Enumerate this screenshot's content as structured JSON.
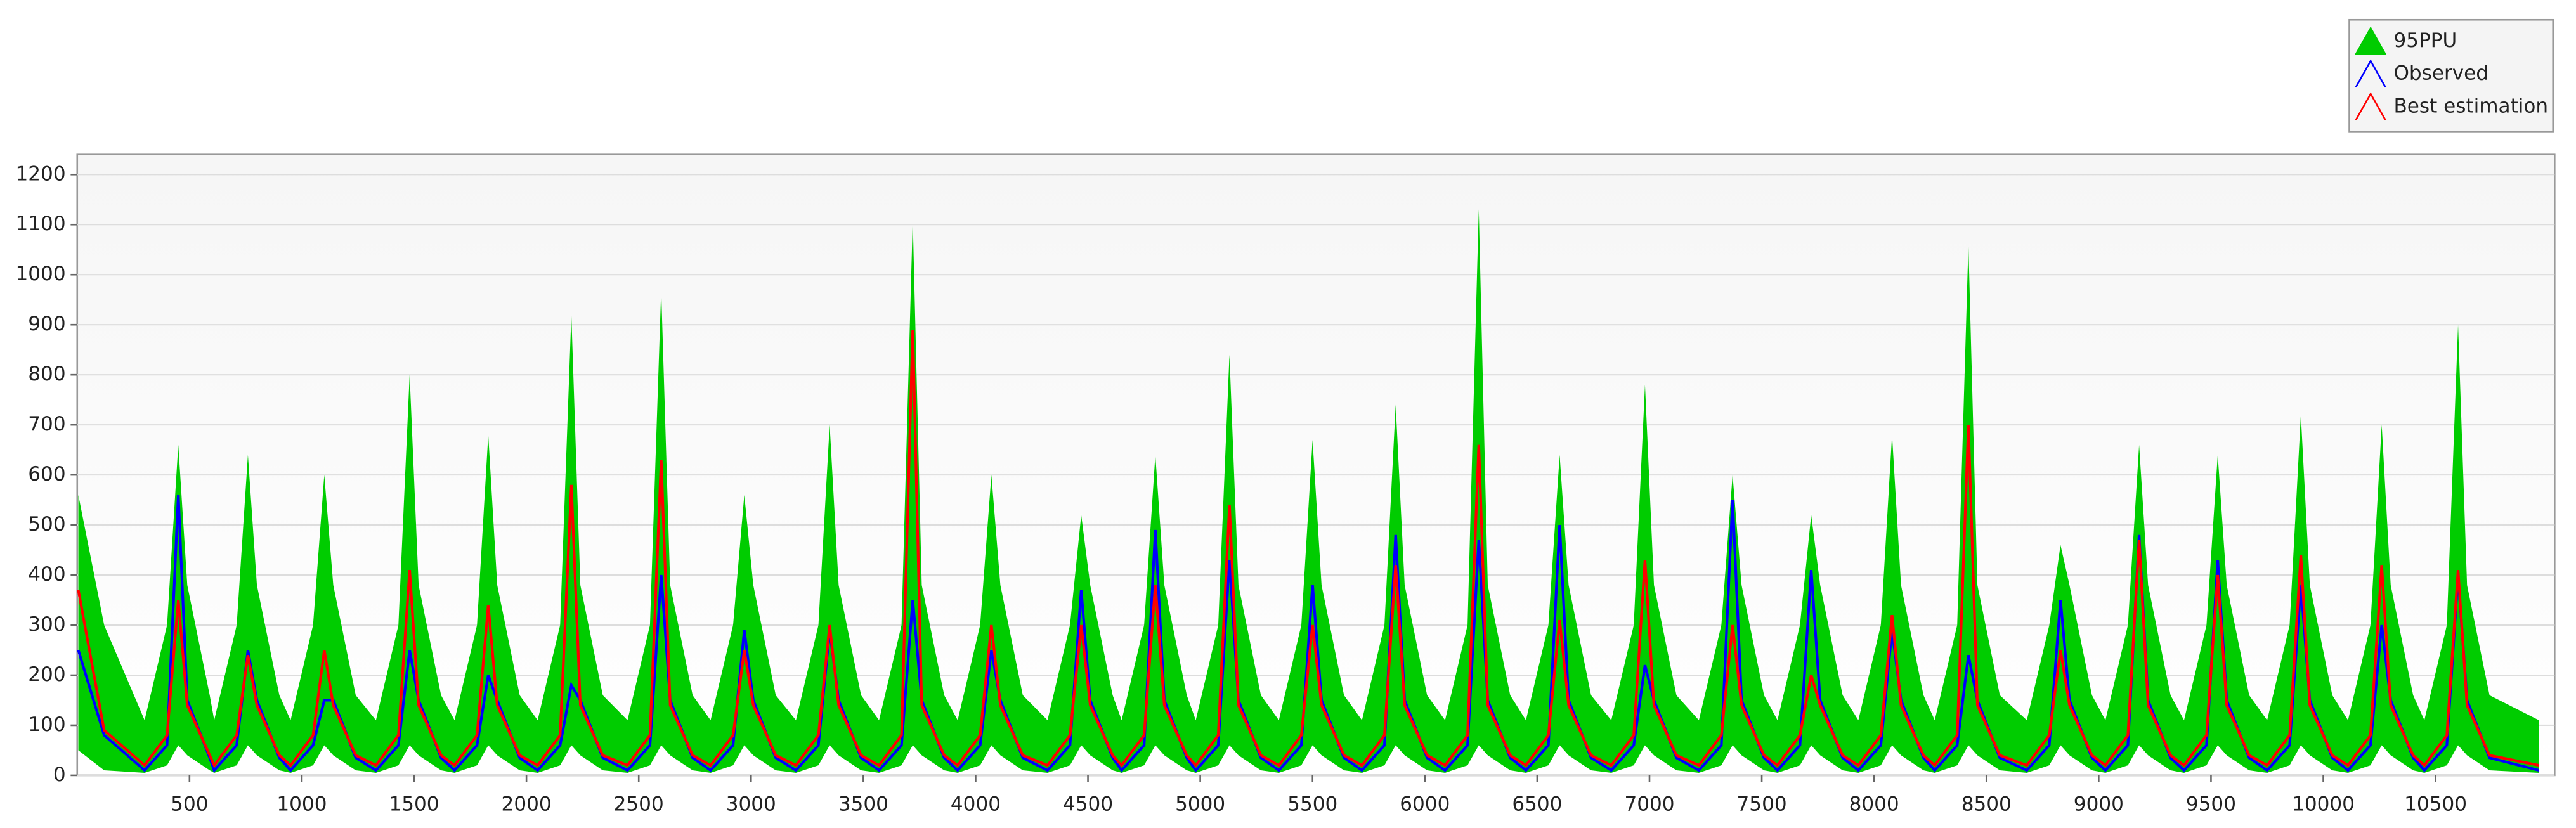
{
  "chart_data": {
    "type": "band-line",
    "x": [
      5,
      120,
      300,
      400,
      450,
      490,
      590,
      610,
      710,
      760,
      800,
      900,
      950,
      1050,
      1100,
      1140,
      1240,
      1330,
      1430,
      1480,
      1520,
      1620,
      1680,
      1780,
      1830,
      1870,
      1970,
      2050,
      2150,
      2200,
      2240,
      2340,
      2450,
      2550,
      2600,
      2640,
      2740,
      2820,
      2920,
      2970,
      3010,
      3110,
      3200,
      3300,
      3350,
      3390,
      3490,
      3570,
      3670,
      3720,
      3760,
      3860,
      3920,
      4020,
      4070,
      4110,
      4210,
      4320,
      4420,
      4470,
      4510,
      4610,
      4650,
      4750,
      4800,
      4840,
      4940,
      4980,
      5080,
      5130,
      5170,
      5270,
      5350,
      5450,
      5500,
      5540,
      5640,
      5720,
      5820,
      5870,
      5910,
      6010,
      6090,
      6190,
      6240,
      6280,
      6380,
      6450,
      6550,
      6600,
      6640,
      6740,
      6830,
      6930,
      6980,
      7020,
      7120,
      7220,
      7320,
      7370,
      7410,
      7510,
      7570,
      7670,
      7720,
      7760,
      7860,
      7930,
      8030,
      8080,
      8120,
      8220,
      8270,
      8370,
      8420,
      8460,
      8560,
      8680,
      8780,
      8830,
      8870,
      8970,
      9030,
      9130,
      9180,
      9220,
      9320,
      9380,
      9480,
      9530,
      9570,
      9670,
      9750,
      9850,
      9900,
      9940,
      10040,
      10110,
      10210,
      10260,
      10300,
      10400,
      10450,
      10550,
      10600,
      10640,
      10740,
      10960
    ],
    "series": [
      {
        "name": "95PPU",
        "color": "#00cc00",
        "upper": [
          560,
          300,
          110,
          300,
          660,
          380,
          160,
          110,
          300,
          640,
          380,
          160,
          110,
          300,
          600,
          380,
          160,
          110,
          300,
          800,
          380,
          160,
          110,
          300,
          680,
          380,
          160,
          110,
          300,
          920,
          380,
          160,
          110,
          300,
          970,
          380,
          160,
          110,
          300,
          560,
          380,
          160,
          110,
          300,
          700,
          380,
          160,
          110,
          300,
          1110,
          380,
          160,
          110,
          300,
          600,
          380,
          160,
          110,
          300,
          520,
          380,
          160,
          110,
          300,
          640,
          380,
          160,
          110,
          300,
          840,
          380,
          160,
          110,
          300,
          670,
          380,
          160,
          110,
          300,
          740,
          380,
          160,
          110,
          300,
          1130,
          380,
          160,
          110,
          300,
          640,
          380,
          160,
          110,
          300,
          780,
          380,
          160,
          110,
          300,
          600,
          380,
          160,
          110,
          300,
          520,
          380,
          160,
          110,
          300,
          680,
          380,
          160,
          110,
          300,
          1060,
          380,
          160,
          110,
          300,
          460,
          380,
          160,
          110,
          300,
          660,
          380,
          160,
          110,
          300,
          640,
          380,
          160,
          110,
          300,
          720,
          380,
          160,
          110,
          300,
          700,
          380,
          160,
          110,
          300,
          900,
          380,
          160,
          110
        ],
        "lower": [
          50,
          10,
          5,
          20,
          60,
          40,
          10,
          5,
          20,
          60,
          40,
          10,
          5,
          20,
          60,
          40,
          10,
          5,
          20,
          60,
          40,
          10,
          5,
          20,
          60,
          40,
          10,
          5,
          20,
          60,
          40,
          10,
          5,
          20,
          60,
          40,
          10,
          5,
          20,
          60,
          40,
          10,
          5,
          20,
          60,
          40,
          10,
          5,
          20,
          60,
          40,
          10,
          5,
          20,
          60,
          40,
          10,
          5,
          20,
          60,
          40,
          10,
          5,
          20,
          60,
          40,
          10,
          5,
          20,
          60,
          40,
          10,
          5,
          20,
          60,
          40,
          10,
          5,
          20,
          60,
          40,
          10,
          5,
          20,
          60,
          40,
          10,
          5,
          20,
          60,
          40,
          10,
          5,
          20,
          60,
          40,
          10,
          5,
          20,
          60,
          40,
          10,
          5,
          20,
          60,
          40,
          10,
          5,
          20,
          60,
          40,
          10,
          5,
          20,
          60,
          40,
          10,
          5,
          20,
          60,
          40,
          10,
          5,
          20,
          60,
          40,
          10,
          5,
          20,
          60,
          40,
          10,
          5,
          20,
          60,
          40,
          10,
          5,
          20,
          60,
          40,
          10,
          5,
          20,
          60,
          40,
          10,
          5
        ]
      },
      {
        "name": "Observed",
        "color": "#0000ff",
        "values": [
          250,
          80,
          10,
          60,
          560,
          150,
          35,
          10,
          60,
          250,
          150,
          35,
          10,
          60,
          150,
          150,
          35,
          10,
          60,
          250,
          150,
          35,
          10,
          60,
          200,
          150,
          35,
          10,
          60,
          180,
          150,
          35,
          10,
          60,
          400,
          150,
          35,
          10,
          60,
          290,
          150,
          35,
          10,
          60,
          290,
          150,
          35,
          10,
          60,
          350,
          150,
          35,
          10,
          60,
          250,
          150,
          35,
          10,
          60,
          370,
          150,
          35,
          10,
          60,
          490,
          150,
          35,
          10,
          60,
          430,
          150,
          35,
          10,
          60,
          380,
          150,
          35,
          10,
          60,
          480,
          150,
          35,
          10,
          60,
          470,
          150,
          35,
          10,
          60,
          500,
          150,
          35,
          10,
          60,
          220,
          150,
          35,
          10,
          60,
          550,
          150,
          35,
          10,
          60,
          410,
          150,
          35,
          10,
          60,
          290,
          150,
          35,
          10,
          60,
          240,
          150,
          35,
          10,
          60,
          350,
          150,
          35,
          10,
          60,
          480,
          150,
          35,
          10,
          60,
          430,
          150,
          35,
          10,
          60,
          380,
          150,
          35,
          10,
          60,
          300,
          150,
          35,
          10,
          60,
          400,
          150,
          35,
          10
        ]
      },
      {
        "name": "Best estimation",
        "color": "#ff0000",
        "values": [
          370,
          90,
          20,
          80,
          350,
          140,
          40,
          20,
          80,
          240,
          140,
          40,
          20,
          80,
          250,
          140,
          40,
          20,
          80,
          410,
          140,
          40,
          20,
          80,
          340,
          140,
          40,
          20,
          80,
          580,
          140,
          40,
          20,
          80,
          630,
          140,
          40,
          20,
          80,
          250,
          140,
          40,
          20,
          80,
          300,
          140,
          40,
          20,
          80,
          890,
          140,
          40,
          20,
          80,
          300,
          140,
          40,
          20,
          80,
          300,
          140,
          40,
          20,
          80,
          380,
          140,
          40,
          20,
          80,
          540,
          140,
          40,
          20,
          80,
          300,
          140,
          40,
          20,
          80,
          420,
          140,
          40,
          20,
          80,
          660,
          140,
          40,
          20,
          80,
          310,
          140,
          40,
          20,
          80,
          430,
          140,
          40,
          20,
          80,
          300,
          140,
          40,
          20,
          80,
          200,
          140,
          40,
          20,
          80,
          320,
          140,
          40,
          20,
          80,
          700,
          140,
          40,
          20,
          80,
          250,
          140,
          40,
          20,
          80,
          470,
          140,
          40,
          20,
          80,
          400,
          140,
          40,
          20,
          80,
          440,
          140,
          40,
          20,
          80,
          420,
          140,
          40,
          20,
          80,
          410,
          140,
          40,
          20
        ]
      }
    ],
    "xlim": [
      0,
      11030
    ],
    "ylim": [
      0,
      1240
    ],
    "xticks": [
      500,
      1000,
      1500,
      2000,
      2500,
      3000,
      3500,
      4000,
      4500,
      5000,
      5500,
      6000,
      6500,
      7000,
      7500,
      8000,
      8500,
      9000,
      9500,
      10000,
      10500
    ],
    "yticks": [
      0,
      100,
      200,
      300,
      400,
      500,
      600,
      700,
      800,
      900,
      1000,
      1100,
      1200
    ],
    "grid": true,
    "legend": "top-right"
  }
}
